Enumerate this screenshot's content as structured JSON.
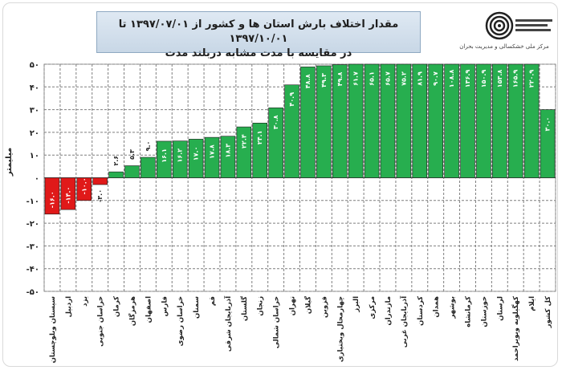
{
  "header": {
    "title_line1": "مقدار اختلاف بارش استان ها و کشور از ۱۳۹۷/۰۷/۰۱ تا ۱۳۹۷/۱۰/۰۱",
    "title_line2": "در مقایسه با مدت مشابه دربلند مدت",
    "org_name": "مرکز ملی خشکسالی و مدیریت بحران"
  },
  "colors": {
    "positive": "#27ae4f",
    "negative": "#e01919",
    "grid": "#7f7f7f"
  },
  "chart_data": {
    "type": "bar",
    "ylabel": "میلیمتر",
    "ylim": [
      -50,
      50
    ],
    "yticks": [
      -50,
      -40,
      -30,
      -20,
      -10,
      0,
      10,
      20,
      30,
      40,
      50
    ],
    "ytick_labels": [
      "-۵۰",
      "-۴۰",
      "-۳۰",
      "-۲۰",
      "-۱۰",
      "۰",
      "۱۰",
      "۲۰",
      "۳۰",
      "۴۰",
      "۵۰"
    ],
    "categories": [
      "سیستان وبلوچستان",
      "اردبیل",
      "یزد",
      "خراسان جنوبی",
      "کرمان",
      "هرمزگان",
      "اصفهان",
      "فارس",
      "خراسان رضوی",
      "سمنان",
      "قم",
      "آذربایجان شرقی",
      "گلستان",
      "زنجان",
      "خراسان شمالی",
      "تهران",
      "گیلان",
      "قزوین",
      "چهارمحال وبختیاری",
      "البرز",
      "مرکزی",
      "مازندران",
      "آذربایجان غربی",
      "کردستان",
      "همدان",
      "بوشهر",
      "کرمانشاه",
      "خوزستان",
      "لرستان",
      "کهگیلویه وبویراحمد",
      "ایلام",
      "کل کشور"
    ],
    "values": [
      -16.0,
      -14.0,
      -10.0,
      -3.0,
      2.6,
      5.3,
      9.0,
      16.1,
      16.2,
      17.0,
      17.8,
      18.3,
      22.4,
      24.1,
      30.8,
      40.9,
      48.8,
      49.3,
      49.8,
      61.7,
      65.1,
      65.7,
      75.2,
      81.9,
      90.7,
      108.8,
      136.9,
      150.9,
      153.8,
      165.9,
      220.9,
      30.0
    ],
    "data_labels": [
      "-۱۶.۰",
      "-۱۴.۰",
      "-۱۰.۰",
      "-۳.۰",
      "۲.۶",
      "۵.۳",
      "۹.۰",
      "۱۶.۱",
      "۱۶.۲",
      "۱۷.۰",
      "۱۷.۸",
      "۱۸.۳",
      "۲۲.۴",
      "۲۴.۱",
      "۳۰.۸",
      "۴۰.۹",
      "۴۸.۸",
      "۴۹.۳",
      "۴۹.۸",
      "۶۱.۷",
      "۶۵.۱",
      "۶۵.۷",
      "۷۵.۲",
      "۸۱.۹",
      "۹۰.۷",
      "۱۰۸.۸",
      "۱۳۶.۹",
      "۱۵۰.۹",
      "۱۵۳.۸",
      "۱۶۵.۹",
      "۲۲۰.۹",
      "۳۰.۰"
    ],
    "grid": true
  }
}
